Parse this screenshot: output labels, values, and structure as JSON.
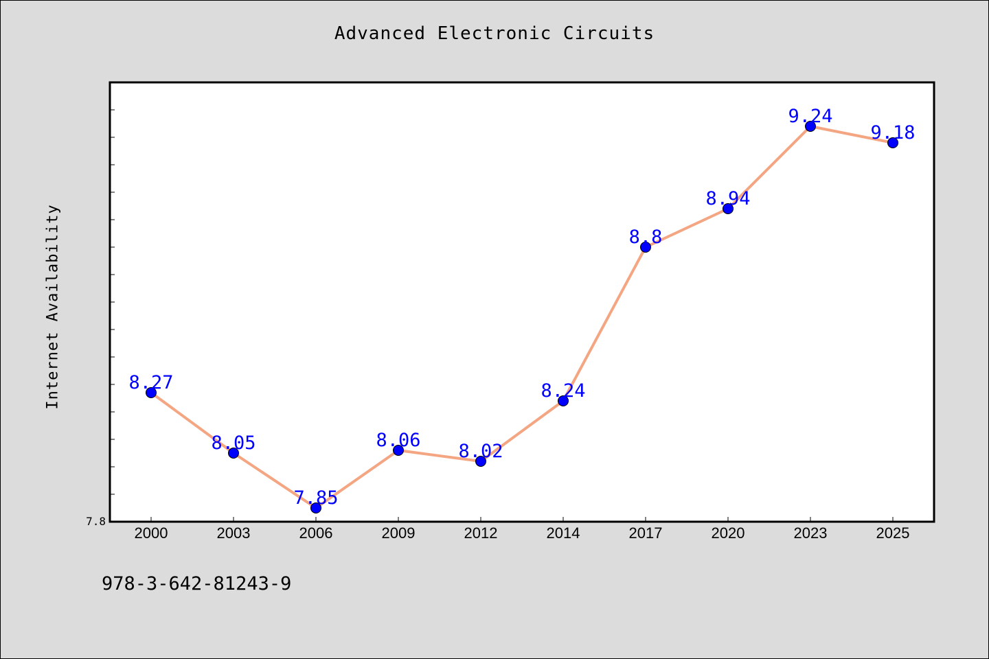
{
  "chart_data": {
    "type": "line",
    "title": "Advanced Electronic Circuits",
    "xlabel": "",
    "ylabel": "Internet Availability",
    "categories": [
      "2000",
      "2003",
      "2006",
      "2009",
      "2012",
      "2014",
      "2017",
      "2020",
      "2023",
      "2025"
    ],
    "series": [
      {
        "values": [
          8.27,
          8.05,
          7.85,
          8.06,
          8.02,
          8.24,
          8.8,
          8.94,
          9.24,
          9.18
        ],
        "line_color": "#f4a582",
        "marker_color": "#0000ff"
      }
    ],
    "data_labels": [
      "8.27",
      "8.05",
      "7.85",
      "8.06",
      "8.02",
      "8.24",
      "8.8",
      "8.94",
      "9.24",
      "9.18"
    ],
    "ylim": [
      7.8,
      9.4
    ],
    "y_tick_labels": [
      "7.8"
    ],
    "grid": false,
    "legend": "none"
  },
  "footer": {
    "isbn": "978-3-642-81243-9"
  },
  "colors": {
    "background": "#dcdcdc",
    "plot_background": "#ffffff",
    "line": "#f4a582",
    "marker": "#0000ff",
    "data_label": "#0000ff"
  }
}
